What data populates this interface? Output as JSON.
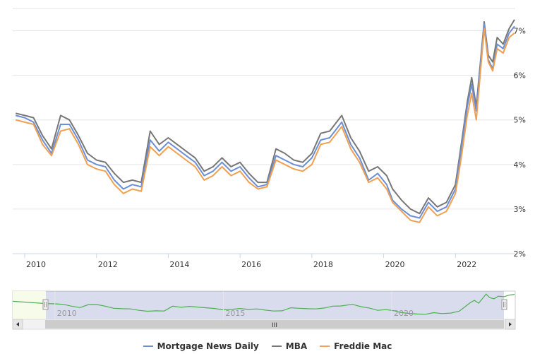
{
  "chart_data": {
    "type": "line",
    "title": "",
    "xlabel": "",
    "ylabel": "",
    "xlim": [
      "2009-09-01",
      "2023-09-01"
    ],
    "ylim": [
      2,
      7.5
    ],
    "ytick_labels": [
      "2%",
      "3%",
      "4%",
      "5%",
      "6%",
      "7%"
    ],
    "yticks": [
      2,
      3,
      4,
      5,
      6,
      7
    ],
    "xtick_labels": [
      "2010",
      "2012",
      "2014",
      "2016",
      "2018",
      "2020",
      "2022"
    ],
    "xticks": [
      2010,
      2012,
      2014,
      2016,
      2018,
      2020,
      2022
    ],
    "grid": true,
    "legend": "bottom",
    "series": [
      {
        "name": "Mortgage News Daily",
        "color": "#6b8fd6",
        "x": [
          "2009-10-01",
          "2010-01-01",
          "2010-04-01",
          "2010-07-01",
          "2010-10-01",
          "2011-01-01",
          "2011-04-01",
          "2011-07-01",
          "2011-10-01",
          "2012-01-01",
          "2012-04-01",
          "2012-07-01",
          "2012-10-01",
          "2013-01-01",
          "2013-04-01",
          "2013-07-01",
          "2013-10-01",
          "2014-01-01",
          "2014-04-01",
          "2014-07-01",
          "2014-10-01",
          "2015-01-01",
          "2015-04-01",
          "2015-07-01",
          "2015-10-01",
          "2016-01-01",
          "2016-04-01",
          "2016-07-01",
          "2016-10-01",
          "2017-01-01",
          "2017-04-01",
          "2017-07-01",
          "2017-10-01",
          "2018-01-01",
          "2018-04-01",
          "2018-07-01",
          "2018-11-01",
          "2019-02-01",
          "2019-05-01",
          "2019-08-01",
          "2019-11-01",
          "2020-02-01",
          "2020-04-01",
          "2020-07-01",
          "2020-10-01",
          "2021-01-01",
          "2021-04-01",
          "2021-07-01",
          "2021-10-01",
          "2022-01-01",
          "2022-03-01",
          "2022-05-01",
          "2022-06-15",
          "2022-08-01",
          "2022-10-20",
          "2022-12-01",
          "2023-01-15",
          "2023-03-01",
          "2023-05-01",
          "2023-07-01",
          "2023-08-25"
        ],
        "y": [
          5.1,
          5.05,
          4.95,
          4.55,
          4.25,
          4.9,
          4.9,
          4.55,
          4.1,
          4.0,
          3.95,
          3.65,
          3.45,
          3.55,
          3.5,
          4.55,
          4.3,
          4.5,
          4.35,
          4.2,
          4.05,
          3.75,
          3.85,
          4.05,
          3.85,
          3.95,
          3.7,
          3.5,
          3.55,
          4.2,
          4.1,
          4.0,
          3.95,
          4.15,
          4.55,
          4.6,
          4.95,
          4.45,
          4.15,
          3.65,
          3.8,
          3.55,
          3.2,
          3.0,
          2.85,
          2.8,
          3.15,
          2.95,
          3.05,
          3.45,
          4.35,
          5.3,
          5.8,
          5.2,
          7.15,
          6.35,
          6.15,
          6.7,
          6.6,
          6.95,
          7.1
        ]
      },
      {
        "name": "MBA",
        "color": "#777777",
        "x": [
          "2009-10-01",
          "2010-01-01",
          "2010-04-01",
          "2010-07-01",
          "2010-10-01",
          "2011-01-01",
          "2011-04-01",
          "2011-07-01",
          "2011-10-01",
          "2012-01-01",
          "2012-04-01",
          "2012-07-01",
          "2012-10-01",
          "2013-01-01",
          "2013-04-01",
          "2013-07-01",
          "2013-10-01",
          "2014-01-01",
          "2014-04-01",
          "2014-07-01",
          "2014-10-01",
          "2015-01-01",
          "2015-04-01",
          "2015-07-01",
          "2015-10-01",
          "2016-01-01",
          "2016-04-01",
          "2016-07-01",
          "2016-10-01",
          "2017-01-01",
          "2017-04-01",
          "2017-07-01",
          "2017-10-01",
          "2018-01-01",
          "2018-04-01",
          "2018-07-01",
          "2018-11-01",
          "2019-02-01",
          "2019-05-01",
          "2019-08-01",
          "2019-11-01",
          "2020-02-01",
          "2020-04-01",
          "2020-07-01",
          "2020-10-01",
          "2021-01-01",
          "2021-04-01",
          "2021-07-01",
          "2021-10-01",
          "2022-01-01",
          "2022-03-01",
          "2022-05-01",
          "2022-06-15",
          "2022-08-01",
          "2022-10-20",
          "2022-12-01",
          "2023-01-15",
          "2023-03-01",
          "2023-05-01",
          "2023-07-01",
          "2023-08-25"
        ],
        "y": [
          5.15,
          5.1,
          5.05,
          4.65,
          4.35,
          5.1,
          5.0,
          4.65,
          4.25,
          4.1,
          4.05,
          3.8,
          3.6,
          3.65,
          3.6,
          4.75,
          4.45,
          4.6,
          4.45,
          4.3,
          4.15,
          3.85,
          3.95,
          4.15,
          3.95,
          4.05,
          3.8,
          3.6,
          3.6,
          4.35,
          4.25,
          4.1,
          4.05,
          4.25,
          4.7,
          4.75,
          5.1,
          4.6,
          4.3,
          3.85,
          3.95,
          3.75,
          3.45,
          3.2,
          3.0,
          2.9,
          3.25,
          3.05,
          3.15,
          3.55,
          4.45,
          5.4,
          5.95,
          5.3,
          7.2,
          6.45,
          6.3,
          6.85,
          6.7,
          7.05,
          7.25
        ]
      },
      {
        "name": "Freddie Mac",
        "color": "#f0a050",
        "x": [
          "2009-10-01",
          "2010-01-01",
          "2010-04-01",
          "2010-07-01",
          "2010-10-01",
          "2011-01-01",
          "2011-04-01",
          "2011-07-01",
          "2011-10-01",
          "2012-01-01",
          "2012-04-01",
          "2012-07-01",
          "2012-10-01",
          "2013-01-01",
          "2013-04-01",
          "2013-07-01",
          "2013-10-01",
          "2014-01-01",
          "2014-04-01",
          "2014-07-01",
          "2014-10-01",
          "2015-01-01",
          "2015-04-01",
          "2015-07-01",
          "2015-10-01",
          "2016-01-01",
          "2016-04-01",
          "2016-07-01",
          "2016-10-01",
          "2017-01-01",
          "2017-04-01",
          "2017-07-01",
          "2017-10-01",
          "2018-01-01",
          "2018-04-01",
          "2018-07-01",
          "2018-11-01",
          "2019-02-01",
          "2019-05-01",
          "2019-08-01",
          "2019-11-01",
          "2020-02-01",
          "2020-04-01",
          "2020-07-01",
          "2020-10-01",
          "2021-01-01",
          "2021-04-01",
          "2021-07-01",
          "2021-10-01",
          "2022-01-01",
          "2022-03-01",
          "2022-05-01",
          "2022-06-15",
          "2022-08-01",
          "2022-10-20",
          "2022-12-01",
          "2023-01-15",
          "2023-03-01",
          "2023-05-01",
          "2023-07-01",
          "2023-08-25"
        ],
        "y": [
          5.0,
          4.95,
          4.9,
          4.45,
          4.2,
          4.75,
          4.8,
          4.45,
          4.0,
          3.9,
          3.85,
          3.55,
          3.35,
          3.45,
          3.4,
          4.4,
          4.2,
          4.4,
          4.25,
          4.1,
          3.95,
          3.65,
          3.75,
          3.95,
          3.75,
          3.85,
          3.6,
          3.45,
          3.5,
          4.1,
          4.0,
          3.9,
          3.85,
          4.0,
          4.45,
          4.5,
          4.85,
          4.35,
          4.05,
          3.6,
          3.7,
          3.45,
          3.15,
          2.95,
          2.75,
          2.7,
          3.05,
          2.85,
          2.95,
          3.35,
          4.15,
          5.1,
          5.6,
          5.0,
          7.05,
          6.3,
          6.1,
          6.6,
          6.5,
          6.85,
          6.95
        ]
      }
    ],
    "navigator": {
      "xtick_labels": [
        "2010",
        "2015",
        "2020"
      ],
      "xticks": [
        2010,
        2015,
        2020
      ],
      "selected_range": [
        "2009-09-01",
        "2023-09-01"
      ],
      "full_range": [
        "2008-10-01",
        "2023-09-01"
      ],
      "scrollbar_grip": "III"
    }
  }
}
